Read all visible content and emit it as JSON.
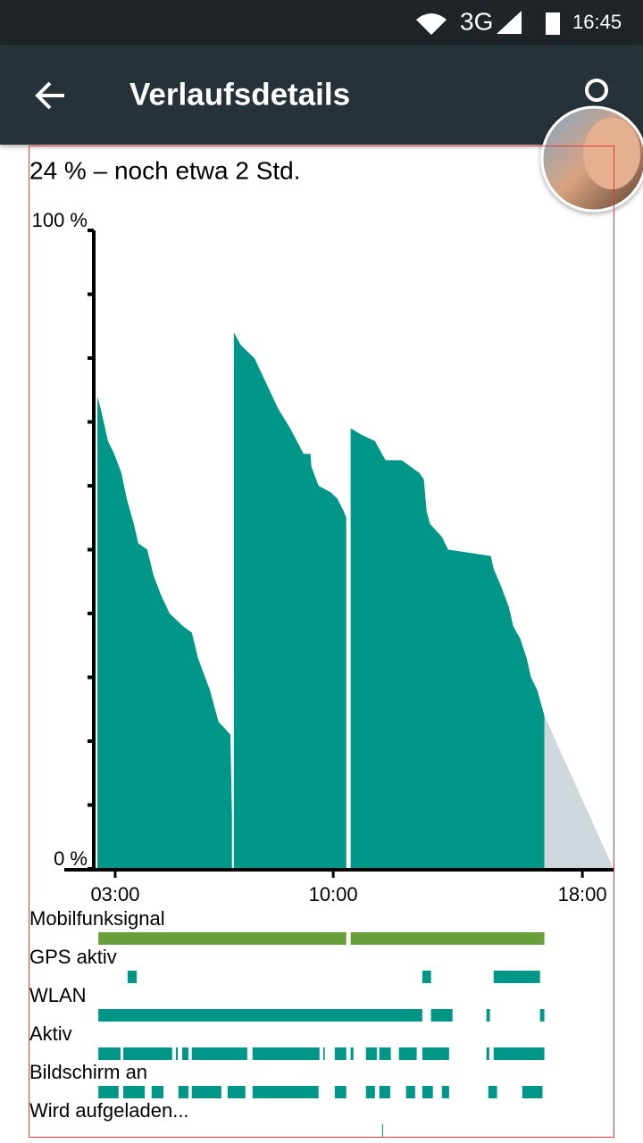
{
  "status_bar": {
    "network": "3G",
    "time": "16:45"
  },
  "app_bar": {
    "title": "Verlaufsdetails"
  },
  "summary": "24 % – noch etwa 2 Std.",
  "chart_data": {
    "type": "area",
    "xlim": [
      2.37,
      19.0
    ],
    "ylim": [
      0,
      100
    ],
    "xticks": [
      {
        "value": 3,
        "label": "03:00"
      },
      {
        "value": 10,
        "label": "10:00"
      },
      {
        "value": 18,
        "label": "18:00"
      }
    ],
    "yticks": [
      {
        "value": 0,
        "label": "0 %"
      },
      {
        "value": 100,
        "label": "100 %"
      }
    ],
    "yminorticks": [
      10,
      20,
      30,
      40,
      50,
      60,
      70,
      80,
      90
    ],
    "series": [
      {
        "color": "#009688",
        "x": [
          2.43,
          2.54,
          2.77,
          2.97,
          3.2,
          3.37,
          3.6,
          3.74,
          4.03,
          4.23,
          4.46,
          4.75,
          5.18,
          5.46,
          5.66,
          6.04,
          6.32,
          6.52,
          6.7,
          6.75,
          null,
          6.81,
          7.04,
          7.47,
          7.76,
          8.24,
          8.62,
          9.05,
          9.27,
          9.3,
          9.53,
          9.91,
          10.13,
          10.34,
          10.42,
          null,
          10.56,
          10.91,
          11.34,
          11.68,
          12.2,
          12.77,
          12.91,
          13.0,
          13.11,
          13.49,
          13.69,
          15.06,
          15.15,
          15.41,
          15.64,
          15.78,
          16.01,
          16.21,
          16.35,
          16.55,
          16.78
        ],
        "values": [
          74,
          72,
          67,
          65,
          62,
          58,
          54,
          51,
          50,
          46,
          43,
          40,
          38,
          37,
          33,
          28,
          23,
          22,
          21,
          8,
          null,
          84,
          82,
          80,
          77,
          72,
          69,
          65,
          65,
          63,
          60,
          59,
          58,
          56,
          55,
          null,
          69,
          68,
          67,
          64,
          64,
          62,
          61,
          56,
          54,
          52,
          50,
          49,
          47,
          44,
          41,
          38,
          36,
          33,
          30,
          28,
          24
        ]
      },
      {
        "color": "#cfd8dc",
        "x": [
          16.78,
          19.0
        ],
        "values": [
          24,
          0
        ]
      }
    ],
    "tracks": [
      {
        "name": "Mobilfunksignal",
        "color": "#689f38",
        "segments": [
          [
            2.46,
            10.42
          ],
          [
            10.56,
            16.78
          ]
        ]
      },
      {
        "name": "GPS aktiv",
        "color": "#009688",
        "segments": [
          [
            3.4,
            3.69
          ],
          [
            12.86,
            13.14
          ],
          [
            15.15,
            16.64
          ]
        ]
      },
      {
        "name": "WLAN",
        "color": "#009688",
        "segments": [
          [
            2.46,
            12.86
          ],
          [
            13.14,
            13.83
          ],
          [
            14.92,
            15.03
          ],
          [
            16.64,
            16.78
          ]
        ]
      },
      {
        "name": "Aktiv",
        "color": "#009688",
        "segments": [
          [
            2.46,
            3.17
          ],
          [
            3.26,
            4.83
          ],
          [
            4.95,
            5.01
          ],
          [
            5.15,
            5.35
          ],
          [
            5.46,
            7.24
          ],
          [
            7.41,
            9.56
          ],
          [
            9.68,
            9.73
          ],
          [
            10.05,
            10.42
          ],
          [
            10.56,
            10.65
          ],
          [
            11.05,
            11.4
          ],
          [
            11.48,
            11.85
          ],
          [
            12.11,
            12.68
          ],
          [
            12.86,
            13.72
          ],
          [
            14.92,
            15.01
          ],
          [
            15.15,
            16.78
          ]
        ]
      },
      {
        "name": "Bildschirm an",
        "color": "#009688",
        "segments": [
          [
            2.46,
            3.11
          ],
          [
            3.26,
            3.95
          ],
          [
            4.17,
            4.55
          ],
          [
            5.03,
            5.35
          ],
          [
            5.46,
            6.41
          ],
          [
            6.61,
            7.18
          ],
          [
            7.41,
            9.53
          ],
          [
            10.05,
            10.42
          ],
          [
            11.05,
            11.34
          ],
          [
            11.48,
            11.83
          ],
          [
            12.34,
            12.63
          ],
          [
            12.86,
            13.2
          ],
          [
            13.49,
            13.72
          ],
          [
            14.98,
            15.26
          ],
          [
            16.07,
            16.72
          ]
        ]
      },
      {
        "name": "Wird aufgeladen...",
        "color": "#009688",
        "segments": [
          [
            11.57,
            11.6
          ]
        ]
      }
    ]
  }
}
